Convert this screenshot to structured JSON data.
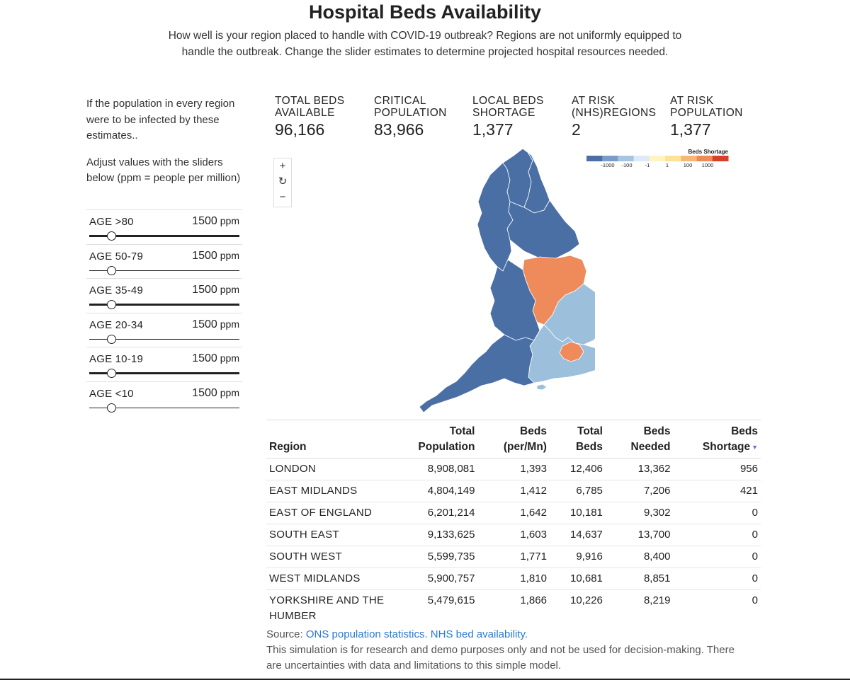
{
  "header": {
    "title": "Hospital Beds Availability",
    "subtitle": "How well is your region placed to handle with COVID-19 outbreak? Regions are not uniformly equipped to handle the outbreak. Change the slider estimates to determine projected hospital resources needed."
  },
  "left": {
    "intro": "If the population in every region were to be infected by these estimates..",
    "adjust": "Adjust values with the sliders below (ppm = people per million)",
    "sliders": [
      {
        "label": "AGE >80",
        "value": "1500",
        "unit": "ppm",
        "level": 0.15
      },
      {
        "label": "AGE 50-79",
        "value": "1500",
        "unit": "ppm",
        "level": 0.15
      },
      {
        "label": "AGE 35-49",
        "value": "1500",
        "unit": "ppm",
        "level": 0.15
      },
      {
        "label": "AGE 20-34",
        "value": "1500",
        "unit": "ppm",
        "level": 0.15
      },
      {
        "label": "AGE 10-19",
        "value": "1500",
        "unit": "ppm",
        "level": 0.15
      },
      {
        "label": "AGE <10",
        "value": "1500",
        "unit": "ppm",
        "level": 0.15
      }
    ]
  },
  "stats": [
    {
      "label1": "TOTAL BEDS",
      "label2": "AVAILABLE",
      "value": "96,166"
    },
    {
      "label1": "CRITICAL",
      "label2": "POPULATION",
      "value": "83,966"
    },
    {
      "label1": "LOCAL BEDS",
      "label2": "SHORTAGE",
      "value": "1,377"
    },
    {
      "label1": "AT RISK",
      "label2": "(NHS)REGIONS",
      "value": "2"
    },
    {
      "label1": "AT RISK",
      "label2": "POPULATION",
      "value": "1,377"
    }
  ],
  "zoom": {
    "plus": "+",
    "reset": "↻",
    "minus": "−"
  },
  "legend": {
    "title": "Beds Shortage",
    "ticks": [
      "-1000",
      "-100",
      "-1",
      "1",
      "100",
      "1000"
    ],
    "colors": [
      "#4a6fa5",
      "#7a9cc8",
      "#a8c4e0",
      "#dcebf5",
      "#fff4c2",
      "#fde29a",
      "#f7b77a",
      "#ef8b5a",
      "#d6402c"
    ]
  },
  "map_colors": {
    "deficit_strong": "#4a6fa5",
    "deficit_mild": "#9cbfdc",
    "shortage": "#ef8b5a"
  },
  "table": {
    "headers": [
      {
        "line1": "",
        "line2": "Region"
      },
      {
        "line1": "Total",
        "line2": "Population"
      },
      {
        "line1": "Beds",
        "line2": "(per/Mn)"
      },
      {
        "line1": "Total",
        "line2": "Beds"
      },
      {
        "line1": "Beds",
        "line2": "Needed"
      },
      {
        "line1": "Beds",
        "line2": "Shortage"
      }
    ],
    "sort_indicator": "▼",
    "rows": [
      [
        "LONDON",
        "8,908,081",
        "1,393",
        "12,406",
        "13,362",
        "956"
      ],
      [
        "EAST MIDLANDS",
        "4,804,149",
        "1,412",
        "6,785",
        "7,206",
        "421"
      ],
      [
        "EAST OF ENGLAND",
        "6,201,214",
        "1,642",
        "10,181",
        "9,302",
        "0"
      ],
      [
        "SOUTH EAST",
        "9,133,625",
        "1,603",
        "14,637",
        "13,700",
        "0"
      ],
      [
        "SOUTH WEST",
        "5,599,735",
        "1,771",
        "9,916",
        "8,400",
        "0"
      ],
      [
        "WEST MIDLANDS",
        "5,900,757",
        "1,810",
        "10,681",
        "8,851",
        "0"
      ],
      [
        "YORKSHIRE AND THE HUMBER",
        "5,479,615",
        "1,866",
        "10,226",
        "8,219",
        "0"
      ]
    ]
  },
  "footer": {
    "source_label": "Source:",
    "link1": "ONS population statistics.",
    "link2": "NHS bed availability.",
    "disclaimer": "This simulation is for research and demo purposes only and not be used for decision-making. There are uncertainties with data and limitations to this simple model."
  }
}
